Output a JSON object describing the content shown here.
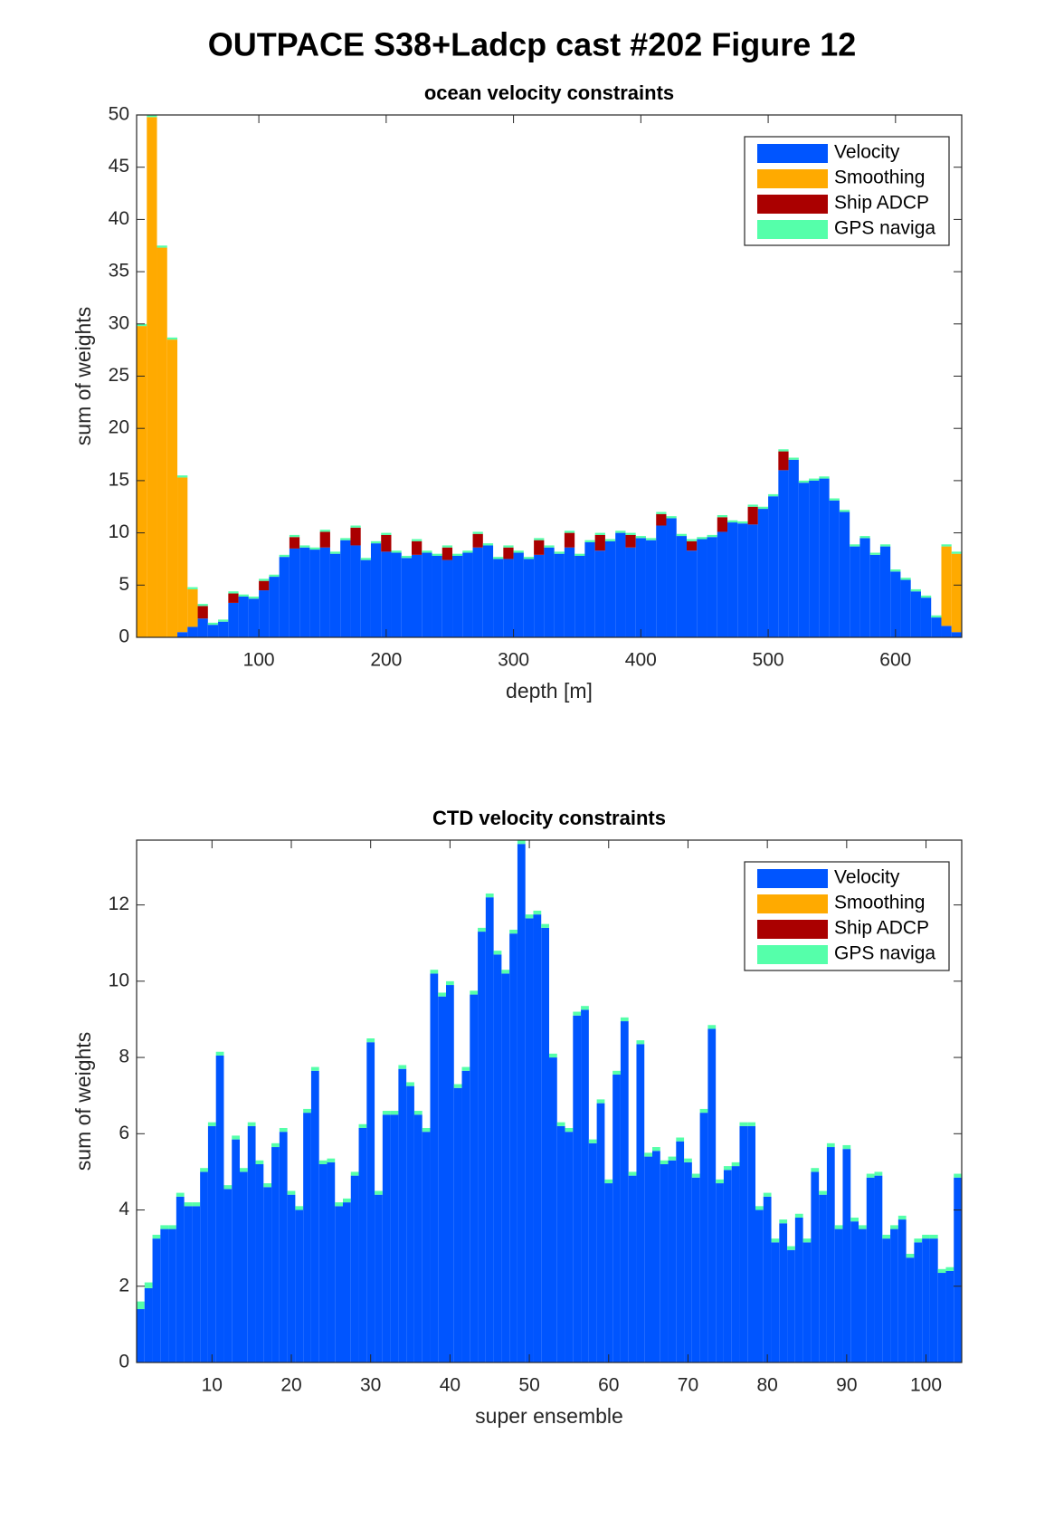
{
  "title": "OUTPACE S38+Ladcp cast #202  Figure 12",
  "chart_data": [
    {
      "type": "stacked_bar",
      "title": "ocean velocity constraints",
      "xlabel": "depth [m]",
      "ylabel": "sum of weights",
      "x": [
        8,
        16,
        24,
        32,
        40,
        48,
        56,
        64,
        72,
        80,
        88,
        96,
        104,
        112,
        120,
        128,
        136,
        144,
        152,
        160,
        168,
        176,
        184,
        192,
        200,
        208,
        216,
        224,
        232,
        240,
        248,
        256,
        264,
        272,
        280,
        288,
        296,
        304,
        312,
        320,
        328,
        336,
        344,
        352,
        360,
        368,
        376,
        384,
        392,
        400,
        408,
        416,
        424,
        432,
        440,
        448,
        456,
        464,
        472,
        480,
        488,
        496,
        504,
        512,
        520,
        528,
        536,
        544,
        552,
        560,
        568,
        576,
        584,
        592,
        600,
        608,
        616,
        624,
        632,
        640,
        648
      ],
      "series": [
        {
          "name": "Velocity",
          "color": "#0055ff",
          "values": [
            0,
            0,
            0,
            0,
            0.5,
            1.0,
            1.8,
            1.2,
            1.5,
            3.3,
            3.9,
            3.7,
            4.5,
            5.8,
            7.7,
            8.5,
            8.6,
            8.4,
            8.6,
            8.0,
            9.3,
            8.8,
            7.4,
            9.0,
            8.2,
            8.1,
            7.6,
            7.9,
            8.1,
            7.8,
            7.4,
            7.8,
            8.1,
            8.6,
            8.8,
            7.5,
            7.5,
            8.1,
            7.5,
            7.9,
            8.6,
            8.0,
            8.6,
            7.8,
            9.1,
            8.3,
            9.2,
            10.0,
            8.6,
            9.5,
            9.3,
            10.7,
            11.4,
            9.7,
            8.3,
            9.4,
            9.6,
            10.1,
            11.0,
            10.9,
            10.8,
            12.3,
            13.5,
            16.0,
            17.0,
            14.8,
            15.0,
            15.2,
            13.1,
            12.0,
            8.7,
            9.5,
            7.9,
            8.7,
            6.3,
            5.5,
            4.4,
            3.8,
            1.9,
            1.1,
            0.5
          ]
        },
        {
          "name": "Smoothing",
          "color": "#ffaa00",
          "values": [
            29.8,
            49.8,
            37.3,
            28.5,
            14.8,
            3.6,
            0,
            0,
            0,
            0,
            0,
            0,
            0,
            0,
            0,
            0,
            0,
            0,
            0,
            0,
            0,
            0,
            0,
            0,
            0,
            0,
            0,
            0,
            0,
            0,
            0,
            0,
            0,
            0,
            0,
            0,
            0,
            0,
            0,
            0,
            0,
            0,
            0,
            0,
            0,
            0,
            0,
            0,
            0,
            0,
            0,
            0,
            0,
            0,
            0,
            0,
            0,
            0,
            0,
            0,
            0,
            0,
            0,
            0,
            0,
            0,
            0,
            0,
            0,
            0,
            0,
            0,
            0,
            0,
            0,
            0,
            0,
            0,
            0,
            7.6,
            7.5
          ]
        },
        {
          "name": "Ship ADCP",
          "color": "#aa0000",
          "values": [
            0,
            0,
            0,
            0,
            0,
            0,
            1.2,
            0,
            0,
            0.9,
            0,
            0,
            0.9,
            0,
            0,
            1.1,
            0,
            0,
            1.5,
            0,
            0,
            1.7,
            0,
            0,
            1.6,
            0,
            0,
            1.3,
            0,
            0,
            1.2,
            0,
            0,
            1.3,
            0,
            0,
            1.1,
            0,
            0,
            1.4,
            0,
            0,
            1.4,
            0,
            0,
            1.5,
            0,
            0,
            1.2,
            0,
            0,
            1.1,
            0,
            0,
            0.9,
            0,
            0,
            1.4,
            0,
            0,
            1.7,
            0,
            0,
            1.8,
            0,
            0,
            0,
            0,
            0,
            0,
            0,
            0,
            0,
            0,
            0,
            0,
            0,
            0,
            0,
            0,
            0
          ]
        },
        {
          "name": "GPS naviga",
          "color": "#55ffaa",
          "values": [
            0.2,
            0.2,
            0.2,
            0.2,
            0.2,
            0.2,
            0.2,
            0.2,
            0.2,
            0.2,
            0.2,
            0.2,
            0.2,
            0.2,
            0.2,
            0.2,
            0.2,
            0.2,
            0.2,
            0.2,
            0.2,
            0.2,
            0.2,
            0.2,
            0.2,
            0.2,
            0.2,
            0.2,
            0.2,
            0.2,
            0.2,
            0.2,
            0.2,
            0.2,
            0.2,
            0.2,
            0.2,
            0.2,
            0.2,
            0.2,
            0.2,
            0.2,
            0.2,
            0.2,
            0.2,
            0.2,
            0.2,
            0.2,
            0.2,
            0.2,
            0.2,
            0.2,
            0.2,
            0.2,
            0.2,
            0.2,
            0.2,
            0.2,
            0.2,
            0.2,
            0.2,
            0.2,
            0.2,
            0.2,
            0.2,
            0.2,
            0.2,
            0.2,
            0.2,
            0.2,
            0.2,
            0.2,
            0.2,
            0.2,
            0.2,
            0.2,
            0.2,
            0.2,
            0.2,
            0.2,
            0.2
          ]
        }
      ],
      "xlim": [
        4,
        652
      ],
      "xticks": [
        100,
        200,
        300,
        400,
        500,
        600
      ],
      "ylim": [
        0,
        50
      ],
      "yticks": [
        0,
        5,
        10,
        15,
        20,
        25,
        30,
        35,
        40,
        45,
        50
      ],
      "legend": "northeast"
    },
    {
      "type": "stacked_bar",
      "title": "CTD velocity constraints",
      "xlabel": "super ensemble",
      "ylabel": "sum of weights",
      "x": [
        1,
        2,
        3,
        4,
        5,
        6,
        7,
        8,
        9,
        10,
        11,
        12,
        13,
        14,
        15,
        16,
        17,
        18,
        19,
        20,
        21,
        22,
        23,
        24,
        25,
        26,
        27,
        28,
        29,
        30,
        31,
        32,
        33,
        34,
        35,
        36,
        37,
        38,
        39,
        40,
        41,
        42,
        43,
        44,
        45,
        46,
        47,
        48,
        49,
        50,
        51,
        52,
        53,
        54,
        55,
        56,
        57,
        58,
        59,
        60,
        61,
        62,
        63,
        64,
        65,
        66,
        67,
        68,
        69,
        70,
        71,
        72,
        73,
        74,
        75,
        76,
        77,
        78,
        79,
        80,
        81,
        82,
        83,
        84,
        85,
        86,
        87,
        88,
        89,
        90,
        91,
        92,
        93,
        94,
        95,
        96,
        97,
        98,
        99,
        100,
        101,
        102,
        103,
        104
      ],
      "series": [
        {
          "name": "Velocity",
          "color": "#0055ff",
          "values": [
            1.4,
            1.95,
            3.25,
            3.5,
            3.5,
            4.35,
            4.1,
            4.1,
            5.0,
            6.2,
            8.05,
            4.55,
            5.85,
            5.0,
            6.2,
            5.2,
            4.6,
            5.65,
            6.05,
            4.4,
            4.0,
            6.55,
            7.65,
            5.2,
            5.25,
            4.1,
            4.2,
            4.9,
            6.15,
            8.4,
            4.4,
            6.5,
            6.5,
            7.7,
            7.25,
            6.5,
            6.05,
            10.2,
            9.6,
            9.9,
            7.2,
            7.65,
            9.65,
            11.3,
            12.2,
            10.7,
            10.2,
            11.25,
            13.6,
            11.65,
            11.75,
            11.4,
            8.0,
            6.2,
            6.05,
            9.1,
            9.25,
            5.75,
            6.8,
            4.7,
            7.55,
            8.95,
            4.9,
            8.35,
            5.4,
            5.55,
            5.2,
            5.3,
            5.8,
            5.25,
            4.85,
            6.55,
            8.75,
            4.7,
            5.05,
            5.15,
            6.2,
            6.2,
            4.0,
            4.35,
            3.15,
            3.65,
            2.95,
            3.8,
            3.15,
            5.0,
            4.4,
            5.65,
            3.5,
            5.6,
            3.7,
            3.5,
            4.85,
            4.9,
            3.25,
            3.5,
            3.75,
            2.75,
            3.15,
            3.25,
            3.25,
            2.35,
            2.4,
            4.85
          ]
        },
        {
          "name": "Smoothing",
          "color": "#ffaa00",
          "values": [
            0,
            0,
            0,
            0,
            0,
            0,
            0,
            0,
            0,
            0,
            0,
            0,
            0,
            0,
            0,
            0,
            0,
            0,
            0,
            0,
            0,
            0,
            0,
            0,
            0,
            0,
            0,
            0,
            0,
            0,
            0,
            0,
            0,
            0,
            0,
            0,
            0,
            0,
            0,
            0,
            0,
            0,
            0,
            0,
            0,
            0,
            0,
            0,
            0,
            0,
            0,
            0,
            0,
            0,
            0,
            0,
            0,
            0,
            0,
            0,
            0,
            0,
            0,
            0,
            0,
            0,
            0,
            0,
            0,
            0,
            0,
            0,
            0,
            0,
            0,
            0,
            0,
            0,
            0,
            0,
            0,
            0,
            0,
            0,
            0,
            0,
            0,
            0,
            0,
            0,
            0,
            0,
            0,
            0,
            0,
            0,
            0,
            0,
            0,
            0,
            0,
            0,
            0,
            0
          ]
        },
        {
          "name": "Ship ADCP",
          "color": "#aa0000",
          "values": [
            0,
            0,
            0,
            0,
            0,
            0,
            0,
            0,
            0,
            0,
            0,
            0,
            0,
            0,
            0,
            0,
            0,
            0,
            0,
            0,
            0,
            0,
            0,
            0,
            0,
            0,
            0,
            0,
            0,
            0,
            0,
            0,
            0,
            0,
            0,
            0,
            0,
            0,
            0,
            0,
            0,
            0,
            0,
            0,
            0,
            0,
            0,
            0,
            0,
            0,
            0,
            0,
            0,
            0,
            0,
            0,
            0,
            0,
            0,
            0,
            0,
            0,
            0,
            0,
            0,
            0,
            0,
            0,
            0,
            0,
            0,
            0,
            0,
            0,
            0,
            0,
            0,
            0,
            0,
            0,
            0,
            0,
            0,
            0,
            0,
            0,
            0,
            0,
            0,
            0,
            0,
            0,
            0,
            0,
            0,
            0,
            0,
            0,
            0,
            0,
            0,
            0,
            0,
            0
          ]
        },
        {
          "name": "GPS naviga",
          "color": "#55ffaa",
          "values": [
            0.2,
            0.15,
            0.1,
            0.1,
            0.1,
            0.1,
            0.1,
            0.1,
            0.1,
            0.1,
            0.1,
            0.1,
            0.1,
            0.1,
            0.1,
            0.1,
            0.1,
            0.1,
            0.1,
            0.1,
            0.1,
            0.1,
            0.1,
            0.1,
            0.1,
            0.1,
            0.1,
            0.1,
            0.1,
            0.1,
            0.1,
            0.1,
            0.1,
            0.1,
            0.1,
            0.1,
            0.1,
            0.1,
            0.1,
            0.1,
            0.1,
            0.1,
            0.1,
            0.1,
            0.1,
            0.1,
            0.1,
            0.1,
            0.1,
            0.1,
            0.1,
            0.1,
            0.1,
            0.1,
            0.1,
            0.1,
            0.1,
            0.1,
            0.1,
            0.1,
            0.1,
            0.1,
            0.1,
            0.1,
            0.1,
            0.1,
            0.1,
            0.1,
            0.1,
            0.1,
            0.1,
            0.1,
            0.1,
            0.1,
            0.1,
            0.1,
            0.1,
            0.1,
            0.1,
            0.1,
            0.1,
            0.1,
            0.1,
            0.1,
            0.1,
            0.1,
            0.1,
            0.1,
            0.1,
            0.1,
            0.1,
            0.1,
            0.1,
            0.1,
            0.1,
            0.1,
            0.1,
            0.1,
            0.1,
            0.1,
            0.1,
            0.1,
            0.1,
            0.1
          ]
        }
      ],
      "xlim": [
        0.5,
        104.5
      ],
      "xticks": [
        10,
        20,
        30,
        40,
        50,
        60,
        70,
        80,
        90,
        100
      ],
      "ylim": [
        0,
        13.7
      ],
      "yticks": [
        0,
        2,
        4,
        6,
        8,
        10,
        12
      ],
      "legend": "northeast"
    }
  ]
}
